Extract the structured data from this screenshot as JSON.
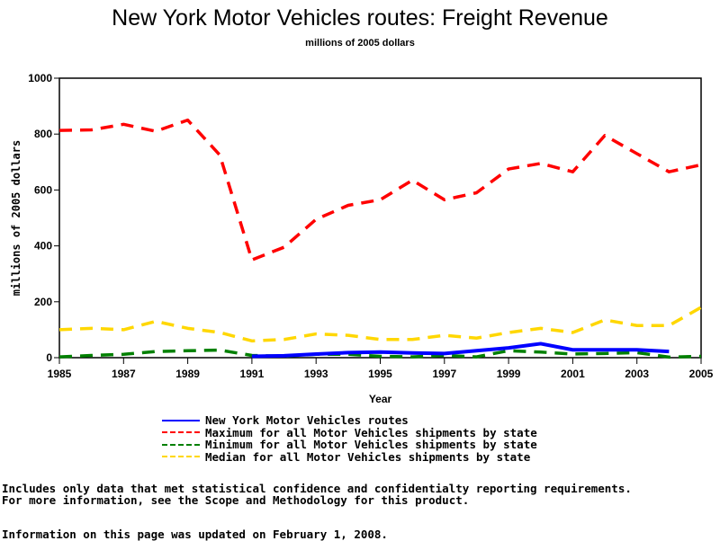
{
  "chart_data": {
    "type": "line",
    "title": "New York Motor Vehicles routes: Freight Revenue",
    "subtitle": "millions of 2005 dollars",
    "xlabel": "Year",
    "ylabel": "millions of 2005 dollars",
    "xlim": [
      1985,
      2005
    ],
    "ylim": [
      0,
      1000
    ],
    "x_ticks": [
      "1985",
      "1987",
      "1989",
      "1991",
      "1993",
      "1995",
      "1997",
      "1999",
      "2001",
      "2003",
      "2005"
    ],
    "y_ticks": [
      "0",
      "200",
      "400",
      "600",
      "800",
      "1000"
    ],
    "grid": false,
    "legend_position": "bottom",
    "series": [
      {
        "name": "New York Motor Vehicles routes",
        "color": "#0000ff",
        "style": "solid",
        "x": [
          1991,
          1992,
          1993,
          1994,
          1995,
          1996,
          1997,
          1998,
          1999,
          2000,
          2001,
          2002,
          2003,
          2004
        ],
        "values": [
          5,
          7,
          13,
          18,
          20,
          17,
          15,
          25,
          35,
          50,
          28,
          28,
          28,
          22
        ]
      },
      {
        "name": "Maximum for all Motor Vehicles shipments by state",
        "color": "#ff0000",
        "style": "dashed",
        "x": [
          1985,
          1986,
          1987,
          1988,
          1989,
          1990,
          1991,
          1992,
          1993,
          1994,
          1995,
          1996,
          1997,
          1998,
          1999,
          2000,
          2001,
          2002,
          2003,
          2004,
          2005
        ],
        "values": [
          813,
          815,
          835,
          810,
          850,
          725,
          350,
          395,
          495,
          545,
          565,
          635,
          565,
          590,
          675,
          695,
          665,
          795,
          730,
          665,
          690
        ]
      },
      {
        "name": "Minimum for all Motor Vehicles shipments by state",
        "color": "#008000",
        "style": "dashed",
        "x": [
          1985,
          1986,
          1987,
          1988,
          1989,
          1990,
          1991,
          1992,
          1993,
          1994,
          1995,
          1996,
          1997,
          1998,
          1999,
          2000,
          2001,
          2002,
          2003,
          2004,
          2005
        ],
        "values": [
          3,
          8,
          12,
          22,
          25,
          27,
          8,
          5,
          12,
          12,
          5,
          3,
          8,
          3,
          25,
          20,
          13,
          15,
          18,
          2,
          5
        ]
      },
      {
        "name": "Median for all Motor Vehicles shipments by state",
        "color": "#ffd700",
        "style": "dashed",
        "x": [
          1985,
          1986,
          1987,
          1988,
          1989,
          1990,
          1991,
          1992,
          1993,
          1994,
          1995,
          1996,
          1997,
          1998,
          1999,
          2000,
          2001,
          2002,
          2003,
          2004,
          2005
        ],
        "values": [
          100,
          105,
          100,
          130,
          105,
          90,
          60,
          65,
          85,
          80,
          65,
          65,
          80,
          70,
          90,
          105,
          90,
          135,
          115,
          115,
          180
        ]
      }
    ]
  },
  "notes": {
    "line1": "Includes only data that met statistical confidence and confidentialty reporting requirements.",
    "line2": "For more information, see the Scope and Methodology for this product.",
    "line3": "Information on this page was updated on February 1, 2008."
  }
}
